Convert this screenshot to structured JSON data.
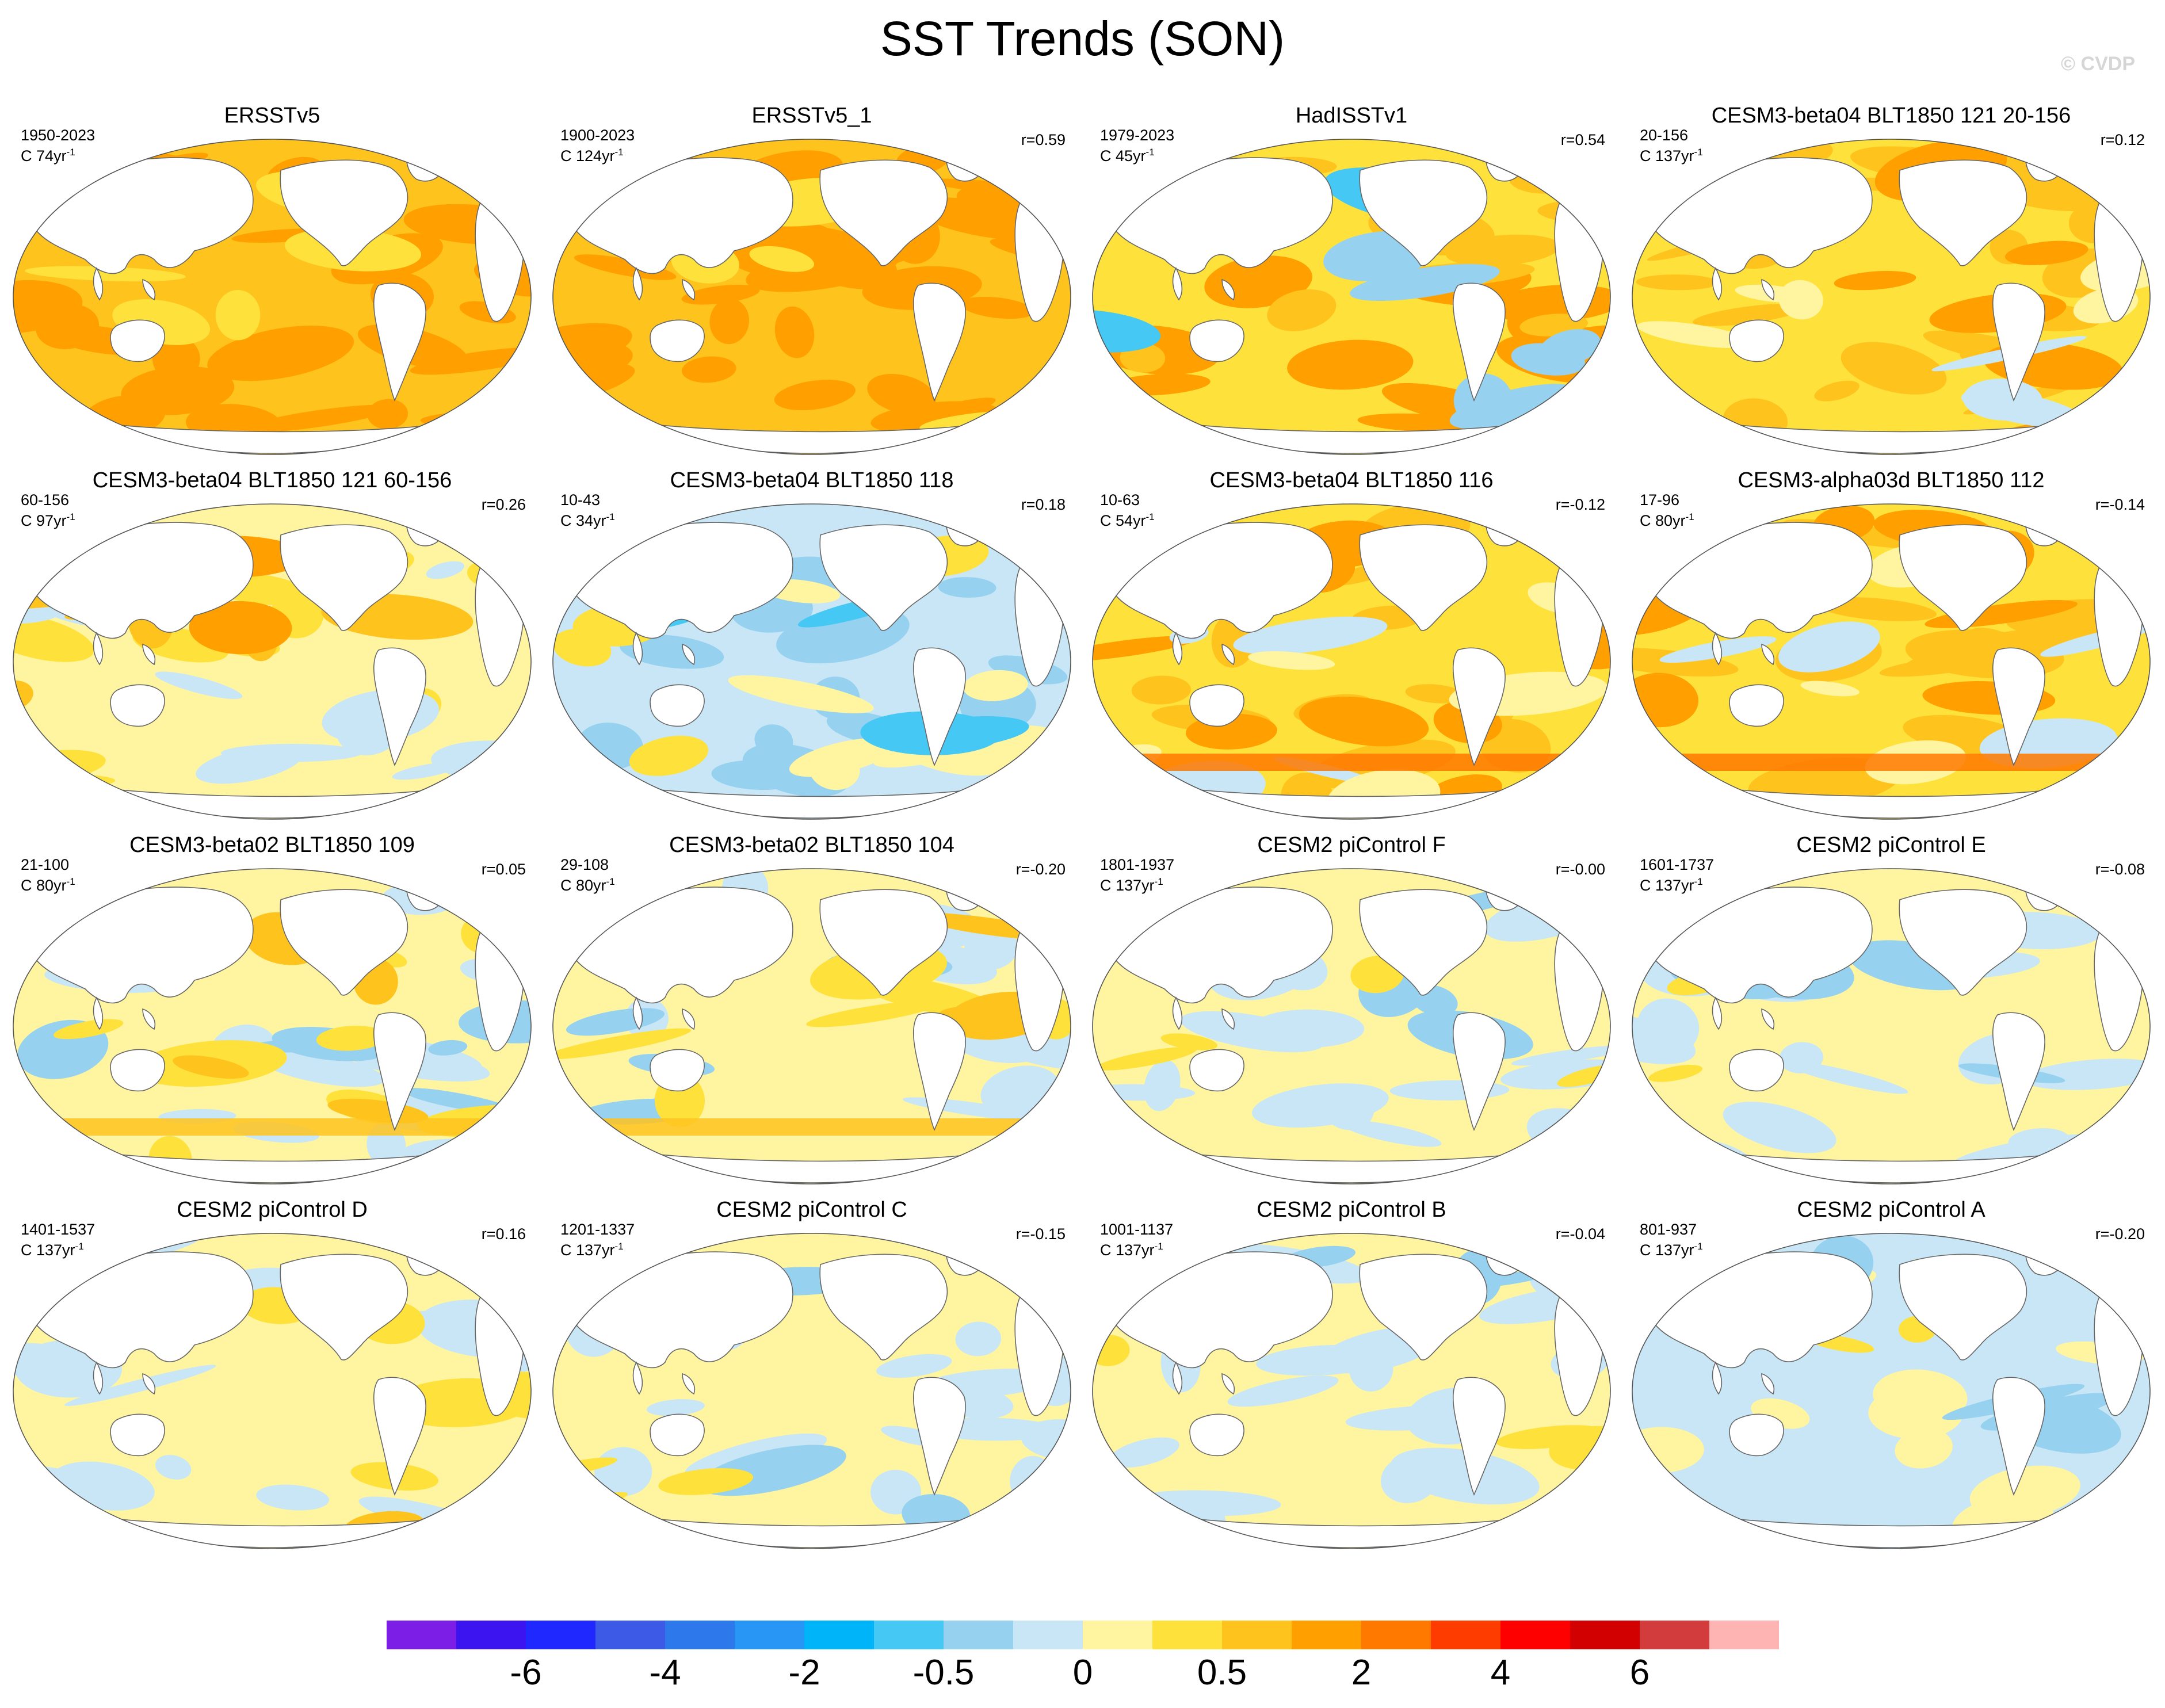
{
  "title": "SST Trends (SON)",
  "watermark": "© CVDP",
  "panels": [
    {
      "title": "ERSSTv5",
      "years": "1950-2023",
      "cinfo": "C 74yr",
      "r": "",
      "style": "warm_strong"
    },
    {
      "title": "ERSSTv5_1",
      "years": "1900-2023",
      "cinfo": "C 124yr",
      "r": "r=0.59",
      "style": "warm_strong"
    },
    {
      "title": "HadISSTv1",
      "years": "1979-2023",
      "cinfo": "C 45yr",
      "r": "r=0.54",
      "style": "warm_mixed"
    },
    {
      "title": "CESM3-beta04 BLT1850 121 20-156",
      "years": "20-156",
      "cinfo": "C 137yr",
      "r": "r=0.12",
      "style": "warm"
    },
    {
      "title": "CESM3-beta04 BLT1850 121 60-156",
      "years": "60-156",
      "cinfo": "C 97yr",
      "r": "r=0.26",
      "style": "mixed_warm"
    },
    {
      "title": "CESM3-beta04 BLT1850 118",
      "years": "10-43",
      "cinfo": "C 34yr",
      "r": "r=0.18",
      "style": "cool"
    },
    {
      "title": "CESM3-beta04 BLT1850 116",
      "years": "10-63",
      "cinfo": "C 54yr",
      "r": "r=-0.12",
      "style": "warm_south"
    },
    {
      "title": "CESM3-alpha03d BLT1850 112",
      "years": "17-96",
      "cinfo": "C 80yr",
      "r": "r=-0.14",
      "style": "warm_south"
    },
    {
      "title": "CESM3-beta02 BLT1850 109",
      "years": "21-100",
      "cinfo": "C 80yr",
      "r": "r=0.05",
      "style": "mixed_south"
    },
    {
      "title": "CESM3-beta02 BLT1850 104",
      "years": "29-108",
      "cinfo": "C 80yr",
      "r": "r=-0.20",
      "style": "mixed_south"
    },
    {
      "title": "CESM2 piControl F",
      "years": "1801-1937",
      "cinfo": "C 137yr",
      "r": "r=-0.00",
      "style": "neutral"
    },
    {
      "title": "CESM2 piControl E",
      "years": "1601-1737",
      "cinfo": "C 137yr",
      "r": "r=-0.08",
      "style": "neutral"
    },
    {
      "title": "CESM2 piControl D",
      "years": "1401-1537",
      "cinfo": "C 137yr",
      "r": "r=0.16",
      "style": "neutral_warmN"
    },
    {
      "title": "CESM2 piControl C",
      "years": "1201-1337",
      "cinfo": "C 137yr",
      "r": "r=-0.15",
      "style": "neutral"
    },
    {
      "title": "CESM2 piControl B",
      "years": "1001-1137",
      "cinfo": "C 137yr",
      "r": "r=-0.04",
      "style": "neutral"
    },
    {
      "title": "CESM2 piControl A",
      "years": "801-937",
      "cinfo": "C 137yr",
      "r": "r=-0.20",
      "style": "neutral_cool"
    }
  ],
  "colorbar": {
    "colors": [
      "#7d1ee6",
      "#3c14f0",
      "#1e28ff",
      "#3c5ae6",
      "#2d78eb",
      "#2896f5",
      "#00b4fa",
      "#46c8f5",
      "#96d2f0",
      "#c8e6f5",
      "#fff5a0",
      "#ffe13c",
      "#ffc31e",
      "#ffa000",
      "#ff7800",
      "#ff3c00",
      "#ff0000",
      "#d20000",
      "#d23c3c",
      "#ffb4b4"
    ],
    "labels": [
      {
        "text": "-6",
        "boundary": 2
      },
      {
        "text": "-4",
        "boundary": 4
      },
      {
        "text": "-2",
        "boundary": 6
      },
      {
        "text": "-0.5",
        "boundary": 8
      },
      {
        "text": "0",
        "boundary": 10
      },
      {
        "text": "0.5",
        "boundary": 12
      },
      {
        "text": "2",
        "boundary": 14
      },
      {
        "text": "4",
        "boundary": 16
      },
      {
        "text": "6",
        "boundary": 18
      }
    ]
  }
}
